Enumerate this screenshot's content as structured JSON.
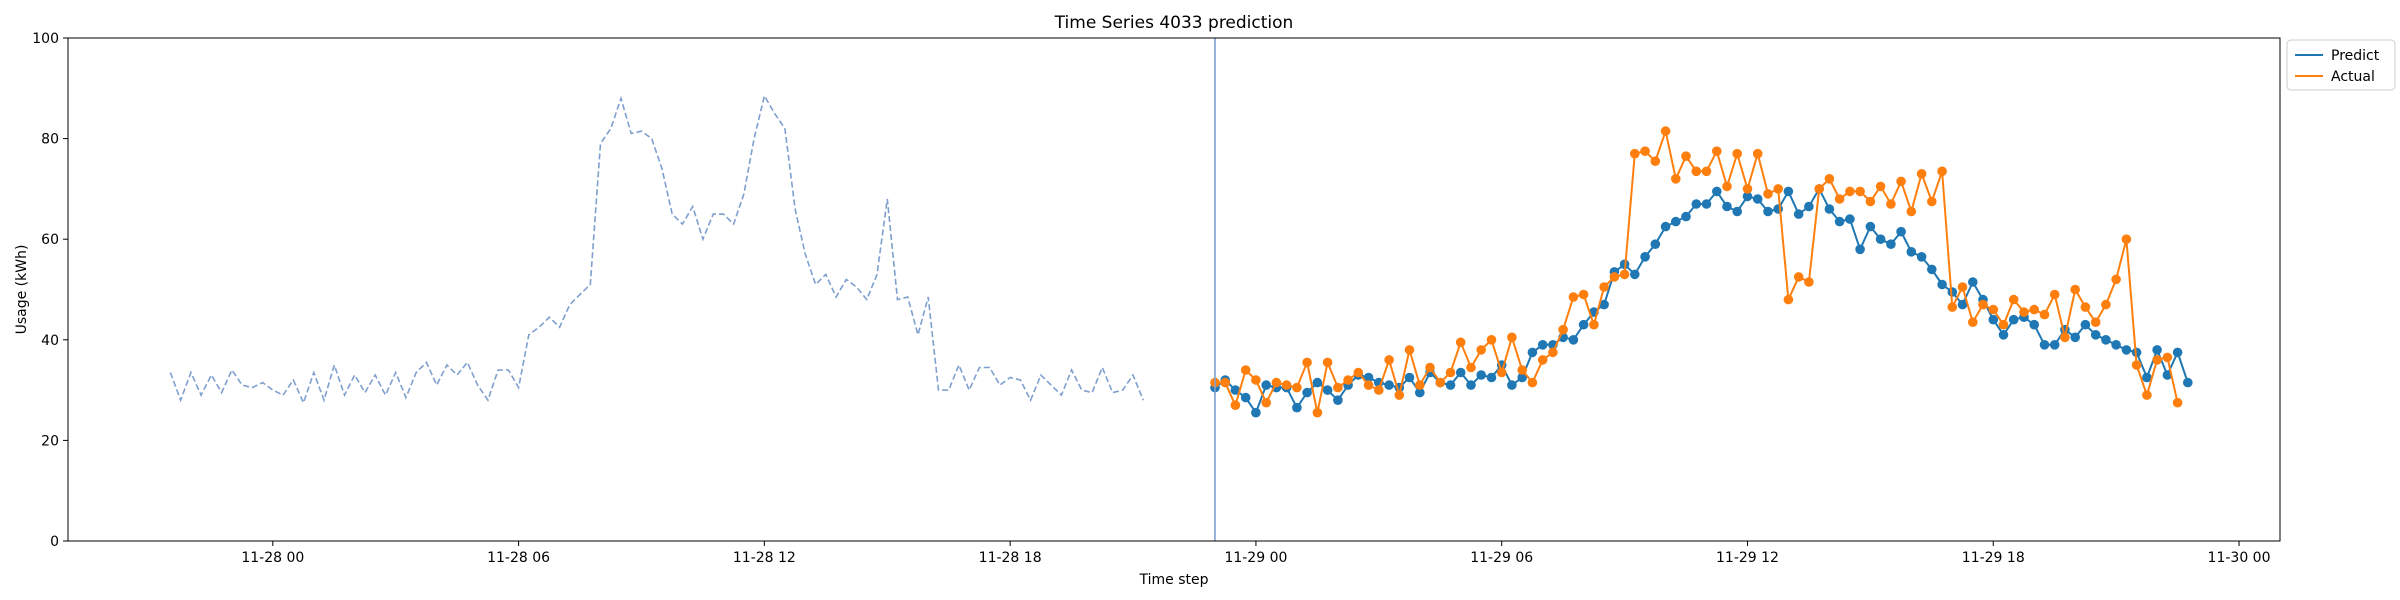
{
  "chart_data": {
    "type": "line",
    "title": "Time Series 4033 prediction",
    "xlabel": "Time step",
    "ylabel": "Usage (kWh)",
    "ylim": [
      0,
      100
    ],
    "yticks": [
      0,
      20,
      40,
      60,
      80,
      100
    ],
    "xlim": [
      "2024-11-27 19:00",
      "2024-11-30 01:00"
    ],
    "xticks": [
      {
        "t": "2024-11-28 00:00",
        "label": "11-28 00"
      },
      {
        "t": "2024-11-28 06:00",
        "label": "11-28 06"
      },
      {
        "t": "2024-11-28 12:00",
        "label": "11-28 12"
      },
      {
        "t": "2024-11-28 18:00",
        "label": "11-28 18"
      },
      {
        "t": "2024-11-29 00:00",
        "label": "11-29 00"
      },
      {
        "t": "2024-11-29 06:00",
        "label": "11-29 06"
      },
      {
        "t": "2024-11-29 12:00",
        "label": "11-29 12"
      },
      {
        "t": "2024-11-29 18:00",
        "label": "11-29 18"
      },
      {
        "t": "2024-11-30 00:00",
        "label": "11-30 00"
      }
    ],
    "grid": false,
    "legend": "top-right (outside plot)",
    "forecast_start": "2024-11-28 23:00",
    "history": {
      "start": "2024-11-27 21:30",
      "interval_minutes": 15,
      "color": "#7f9fcf",
      "style": "dashed",
      "values": [
        33.5,
        28,
        33.5,
        29,
        33,
        29.5,
        34,
        31,
        30.5,
        31.5,
        30,
        29,
        32,
        27.5,
        33.5,
        28,
        35,
        29,
        33,
        29.5,
        33,
        29,
        33.5,
        28.5,
        33.5,
        35.5,
        31,
        35,
        33,
        35.5,
        31,
        28,
        34,
        34,
        30.5,
        41,
        42.5,
        44.5,
        42.5,
        47,
        49,
        51,
        79,
        82,
        88,
        81,
        81.5,
        80,
        74,
        65,
        63,
        66.5,
        60,
        65,
        65,
        63,
        69,
        80,
        88.5,
        85,
        82,
        66,
        57,
        51,
        53,
        48.5,
        52,
        50.5,
        48,
        53,
        68,
        48,
        48.5,
        41,
        48.5,
        30,
        30,
        35,
        30,
        34.5,
        34.5,
        31,
        32.5,
        32,
        28,
        33,
        31,
        29,
        34,
        30,
        29.5,
        34.5,
        29.5,
        30,
        33,
        28
      ]
    },
    "series": [
      {
        "name": "Predict",
        "color": "#1f77b4",
        "start": "2024-11-28 23:00",
        "interval_minutes": 15,
        "values": [
          30.5,
          32,
          30,
          28.5,
          25.5,
          31,
          30.5,
          30.5,
          26.5,
          29.5,
          31.5,
          30,
          28,
          31,
          33,
          32.5,
          31.5,
          31,
          30.5,
          32.5,
          29.5,
          33.5,
          31.5,
          31,
          33.5,
          31,
          33,
          32.5,
          35,
          31,
          32.5,
          37.5,
          39,
          39,
          40.5,
          40,
          43,
          45.5,
          47,
          53.5,
          55,
          53,
          56.5,
          59,
          62.5,
          63.5,
          64.5,
          67,
          67,
          69.5,
          66.5,
          65.5,
          68.5,
          68,
          65.5,
          66,
          69.5,
          65,
          66.5,
          70,
          66,
          63.5,
          64,
          58,
          62.5,
          60,
          59,
          61.5,
          57.5,
          56.5,
          54,
          51,
          49.5,
          47,
          51.5,
          48,
          44,
          41,
          44,
          44.5,
          43,
          39,
          39,
          42,
          40.5,
          43,
          41,
          40,
          39,
          38,
          37.5,
          32.5,
          38,
          33,
          37.5,
          31.5
        ]
      },
      {
        "name": "Actual",
        "color": "#ff7f0e",
        "start": "2024-11-28 23:00",
        "interval_minutes": 15,
        "values": [
          31.5,
          31.5,
          27,
          34,
          32,
          27.5,
          31.5,
          31,
          30.5,
          35.5,
          25.5,
          35.5,
          30.5,
          32,
          33.5,
          31,
          30,
          36,
          29,
          38,
          31,
          34.5,
          31.5,
          33.5,
          39.5,
          34.5,
          38,
          40,
          33.5,
          40.5,
          34,
          31.5,
          36,
          37.5,
          42,
          48.5,
          49,
          43,
          50.5,
          52.5,
          53,
          77,
          77.5,
          75.5,
          81.5,
          72,
          76.5,
          73.5,
          73.5,
          77.5,
          70.5,
          77,
          70,
          77,
          69,
          70,
          48,
          52.5,
          51.5,
          70,
          72,
          68,
          69.5,
          69.5,
          67.5,
          70.5,
          67,
          71.5,
          65.5,
          73,
          67.5,
          73.5,
          46.5,
          50.5,
          43.5,
          47,
          46,
          43,
          48,
          45.5,
          46,
          45,
          49,
          40.5,
          50,
          46.5,
          43.5,
          47,
          52,
          60,
          35,
          29,
          36,
          36.5,
          27.5
        ]
      }
    ]
  }
}
